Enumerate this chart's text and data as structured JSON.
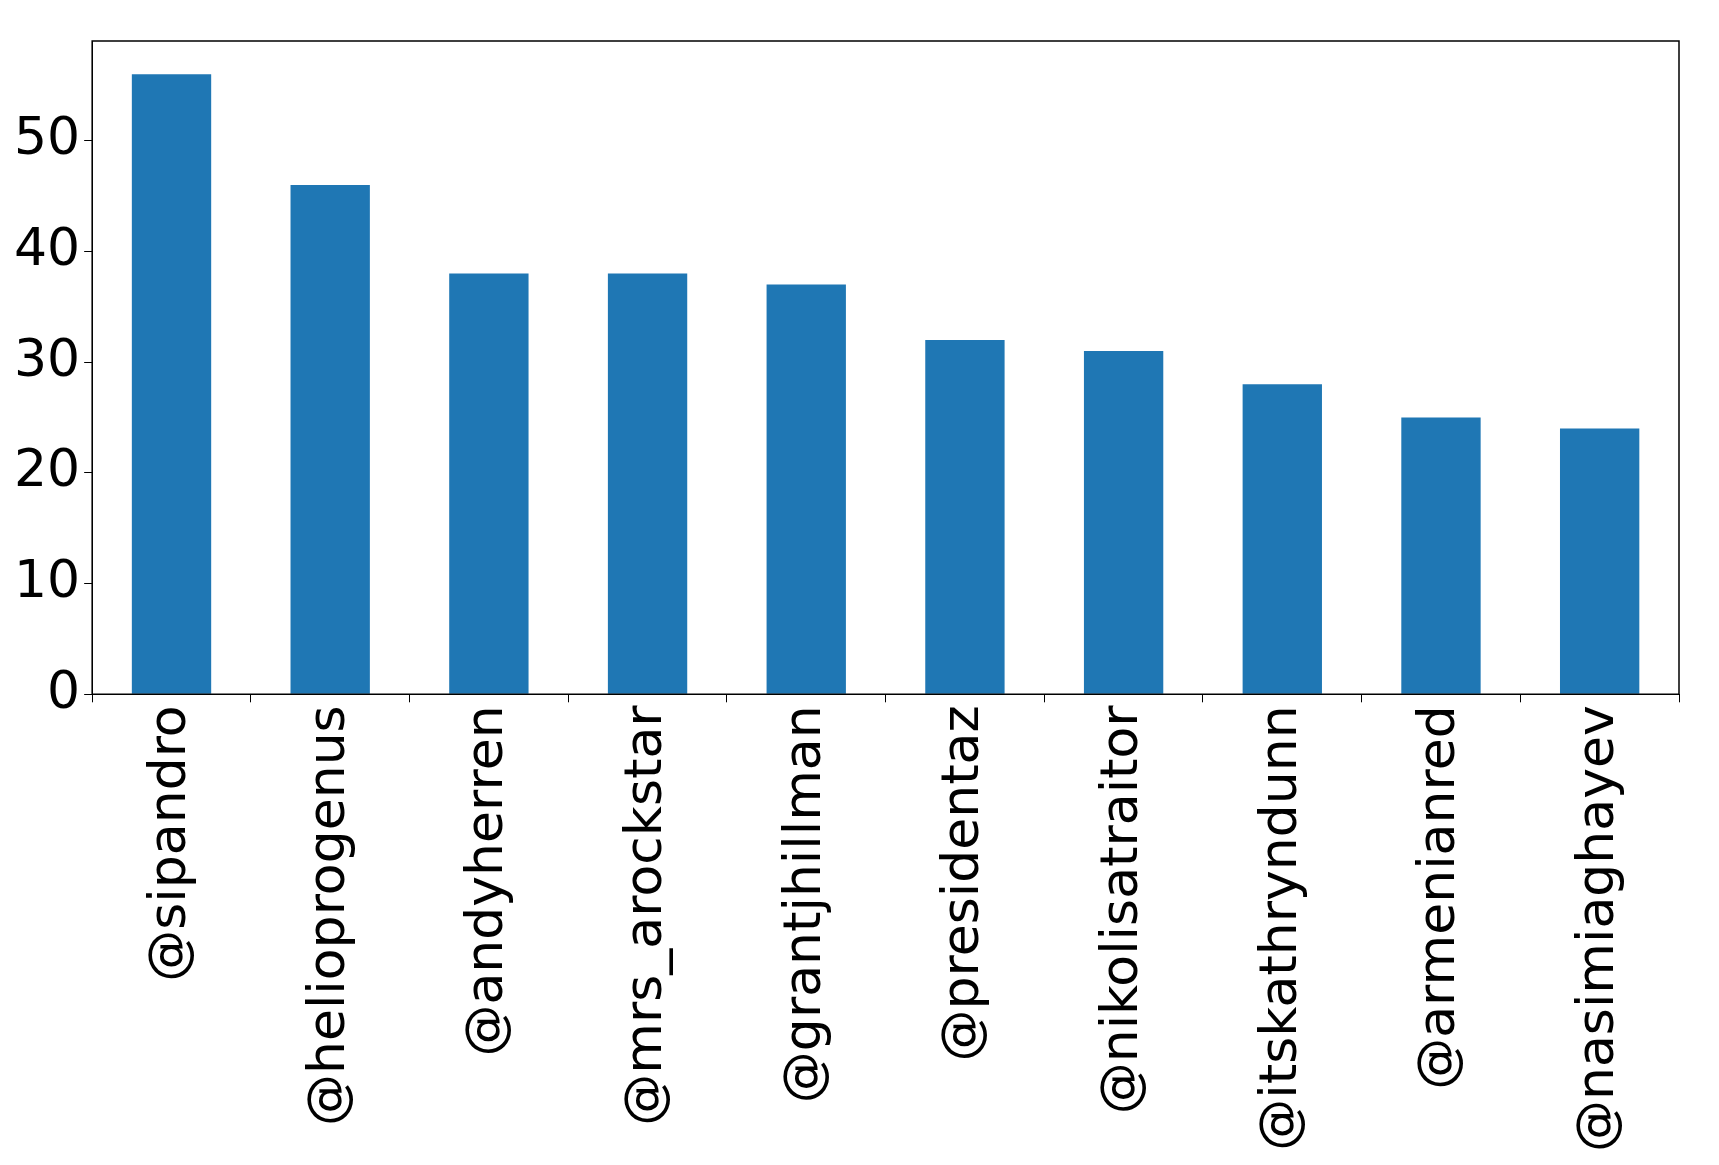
{
  "chart_data": {
    "type": "bar",
    "categories": [
      "@sipandro",
      "@helioprogenus",
      "@andyherren",
      "@mrs_arockstar",
      "@grantjhillman",
      "@presidentaz",
      "@nikolisatraitor",
      "@itskathryndunn",
      "@armenianred",
      "@nasimiaghayev"
    ],
    "values": [
      56,
      46,
      38,
      38,
      37,
      32,
      31,
      28,
      25,
      24
    ],
    "color": "#1f77b4",
    "ylim": [
      0,
      59
    ],
    "yticks": [
      0,
      10,
      20,
      30,
      40,
      50
    ]
  }
}
